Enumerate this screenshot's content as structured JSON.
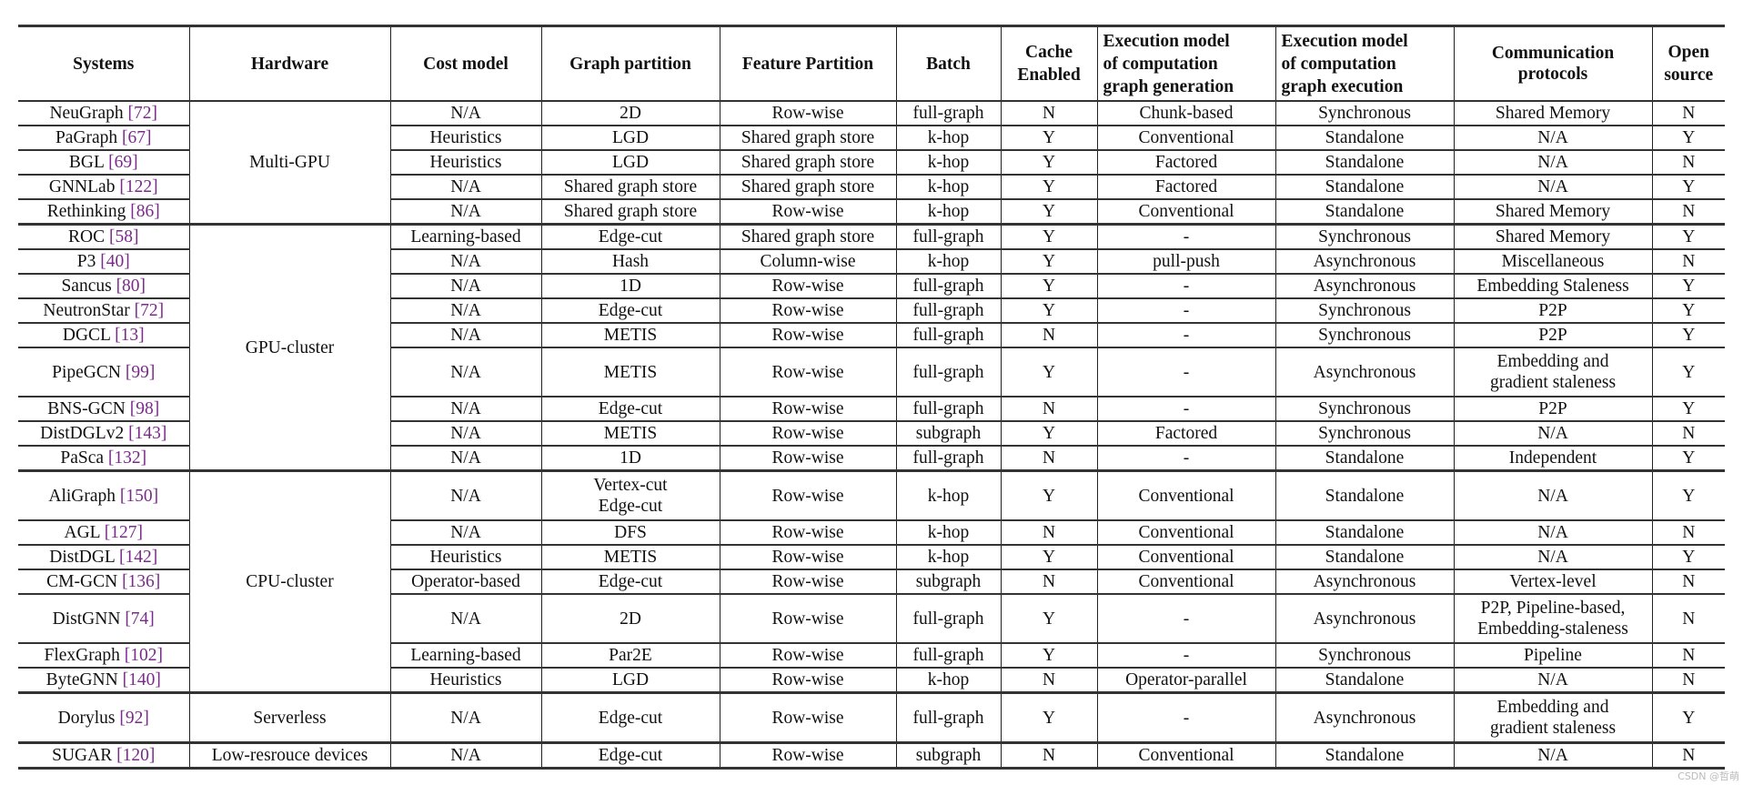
{
  "headers": {
    "systems": "Systems",
    "hardware": "Hardware",
    "cost_model": "Cost model",
    "graph_partition": "Graph partition",
    "feature_partition": "Feature Partition",
    "batch": "Batch",
    "cache_enabled": "Cache\nEnabled",
    "exec_generation": "Execution model\nof computation\ngraph generation",
    "exec_execution": "Execution model\nof computation\ngraph execution",
    "communication": "Communication\nprotocols",
    "open_source": "Open\nsource"
  },
  "groups": [
    {
      "hardware": "Multi-GPU",
      "rows": [
        {
          "system": "NeuGraph",
          "ref": "[72]",
          "cost": "N/A",
          "graph": "2D",
          "feature": "Row-wise",
          "batch": "full-graph",
          "cache": "N",
          "gen": "Chunk-based",
          "exec": "Synchronous",
          "comm": "Shared Memory",
          "open": "N"
        },
        {
          "system": "PaGraph",
          "ref": "[67]",
          "cost": "Heuristics",
          "graph": "LGD",
          "feature": "Shared graph store",
          "batch": "k-hop",
          "cache": "Y",
          "gen": "Conventional",
          "exec": "Standalone",
          "comm": "N/A",
          "open": "Y"
        },
        {
          "system": "BGL",
          "ref": "[69]",
          "cost": "Heuristics",
          "graph": "LGD",
          "feature": "Shared graph store",
          "batch": "k-hop",
          "cache": "Y",
          "gen": "Factored",
          "exec": "Standalone",
          "comm": "N/A",
          "open": "N"
        },
        {
          "system": "GNNLab",
          "ref": "[122]",
          "cost": "N/A",
          "graph": "Shared graph store",
          "feature": "Shared graph store",
          "batch": "k-hop",
          "cache": "Y",
          "gen": "Factored",
          "exec": "Standalone",
          "comm": "N/A",
          "open": "Y"
        },
        {
          "system": "Rethinking",
          "ref": "[86]",
          "cost": "N/A",
          "graph": "Shared graph store",
          "feature": "Row-wise",
          "batch": "k-hop",
          "cache": "Y",
          "gen": "Conventional",
          "exec": "Standalone",
          "comm": "Shared Memory",
          "open": "N"
        }
      ]
    },
    {
      "hardware": "GPU-cluster",
      "rows": [
        {
          "system": "ROC",
          "ref": "[58]",
          "cost": "Learning-based",
          "graph": "Edge-cut",
          "feature": "Shared graph store",
          "batch": "full-graph",
          "cache": "Y",
          "gen": "-",
          "exec": "Synchronous",
          "comm": "Shared Memory",
          "open": "Y"
        },
        {
          "system": "P3",
          "ref": "[40]",
          "cost": "N/A",
          "graph": "Hash",
          "feature": "Column-wise",
          "batch": "k-hop",
          "cache": "Y",
          "gen": "pull-push",
          "exec": "Asynchronous",
          "comm": "Miscellaneous",
          "open": "N"
        },
        {
          "system": "Sancus",
          "ref": "[80]",
          "cost": "N/A",
          "graph": "1D",
          "feature": "Row-wise",
          "batch": "full-graph",
          "cache": "Y",
          "gen": "-",
          "exec": "Asynchronous",
          "comm": "Embedding Staleness",
          "open": "Y"
        },
        {
          "system": "NeutronStar",
          "ref": "[72]",
          "cost": "N/A",
          "graph": "Edge-cut",
          "feature": "Row-wise",
          "batch": "full-graph",
          "cache": "Y",
          "gen": "-",
          "exec": "Synchronous",
          "comm": "P2P",
          "open": "Y"
        },
        {
          "system": "DGCL",
          "ref": "[13]",
          "cost": "N/A",
          "graph": "METIS",
          "feature": "Row-wise",
          "batch": "full-graph",
          "cache": "N",
          "gen": "-",
          "exec": "Synchronous",
          "comm": "P2P",
          "open": "Y"
        },
        {
          "system": "PipeGCN",
          "ref": "[99]",
          "cost": "N/A",
          "graph": "METIS",
          "feature": "Row-wise",
          "batch": "full-graph",
          "cache": "Y",
          "gen": "-",
          "exec": "Asynchronous",
          "comm": "Embedding and\ngradient staleness",
          "open": "Y"
        },
        {
          "system": "BNS-GCN",
          "ref": "[98]",
          "cost": "N/A",
          "graph": "Edge-cut",
          "feature": "Row-wise",
          "batch": "full-graph",
          "cache": "N",
          "gen": "-",
          "exec": "Synchronous",
          "comm": "P2P",
          "open": "Y"
        },
        {
          "system": "DistDGLv2",
          "ref": "[143]",
          "cost": "N/A",
          "graph": "METIS",
          "feature": "Row-wise",
          "batch": "subgraph",
          "cache": "Y",
          "gen": "Factored",
          "exec": "Synchronous",
          "comm": "N/A",
          "open": "N"
        },
        {
          "system": "PaSca",
          "ref": "[132]",
          "cost": "N/A",
          "graph": "1D",
          "feature": "Row-wise",
          "batch": "full-graph",
          "cache": "N",
          "gen": "-",
          "exec": "Standalone",
          "comm": "Independent",
          "open": "Y"
        }
      ]
    },
    {
      "hardware": "CPU-cluster",
      "rows": [
        {
          "system": "AliGraph",
          "ref": "[150]",
          "cost": "N/A",
          "graph": "Vertex-cut\nEdge-cut",
          "feature": "Row-wise",
          "batch": "k-hop",
          "cache": "Y",
          "gen": "Conventional",
          "exec": "Standalone",
          "comm": "N/A",
          "open": "Y"
        },
        {
          "system": "AGL",
          "ref": "[127]",
          "cost": "N/A",
          "graph": "DFS",
          "feature": "Row-wise",
          "batch": "k-hop",
          "cache": "N",
          "gen": "Conventional",
          "exec": "Standalone",
          "comm": "N/A",
          "open": "N"
        },
        {
          "system": "DistDGL",
          "ref": "[142]",
          "cost": "Heuristics",
          "graph": "METIS",
          "feature": "Row-wise",
          "batch": "k-hop",
          "cache": "Y",
          "gen": "Conventional",
          "exec": "Standalone",
          "comm": "N/A",
          "open": "Y"
        },
        {
          "system": "CM-GCN",
          "ref": "[136]",
          "cost": "Operator-based",
          "graph": "Edge-cut",
          "feature": "Row-wise",
          "batch": "subgraph",
          "cache": "N",
          "gen": "Conventional",
          "exec": "Asynchronous",
          "comm": "Vertex-level",
          "open": "N"
        },
        {
          "system": "DistGNN",
          "ref": "[74]",
          "cost": "N/A",
          "graph": "2D",
          "feature": "Row-wise",
          "batch": "full-graph",
          "cache": "Y",
          "gen": "-",
          "exec": "Asynchronous",
          "comm": "P2P, Pipeline-based,\nEmbedding-staleness",
          "open": "N"
        },
        {
          "system": "FlexGraph",
          "ref": "[102]",
          "cost": "Learning-based",
          "graph": "Par2E",
          "feature": "Row-wise",
          "batch": "full-graph",
          "cache": "Y",
          "gen": "-",
          "exec": "Synchronous",
          "comm": "Pipeline",
          "open": "N"
        },
        {
          "system": "ByteGNN",
          "ref": "[140]",
          "cost": "Heuristics",
          "graph": "LGD",
          "feature": "Row-wise",
          "batch": "k-hop",
          "cache": "N",
          "gen": "Operator-parallel",
          "exec": "Standalone",
          "comm": "N/A",
          "open": "N"
        }
      ]
    },
    {
      "hardware": "Serverless",
      "rows": [
        {
          "system": "Dorylus",
          "ref": "[92]",
          "cost": "N/A",
          "graph": "Edge-cut",
          "feature": "Row-wise",
          "batch": "full-graph",
          "cache": "Y",
          "gen": "-",
          "exec": "Asynchronous",
          "comm": "Embedding and\ngradient staleness",
          "open": "Y"
        }
      ]
    },
    {
      "hardware": "Low-resrouce devices",
      "rows": [
        {
          "system": "SUGAR",
          "ref": "[120]",
          "cost": "N/A",
          "graph": "Edge-cut",
          "feature": "Row-wise",
          "batch": "subgraph",
          "cache": "N",
          "gen": "Conventional",
          "exec": "Standalone",
          "comm": "N/A",
          "open": "N"
        }
      ]
    }
  ],
  "colors": {
    "citation": "#7b2a8c",
    "border": "#333333"
  },
  "watermark": "CSDN @哲萌"
}
